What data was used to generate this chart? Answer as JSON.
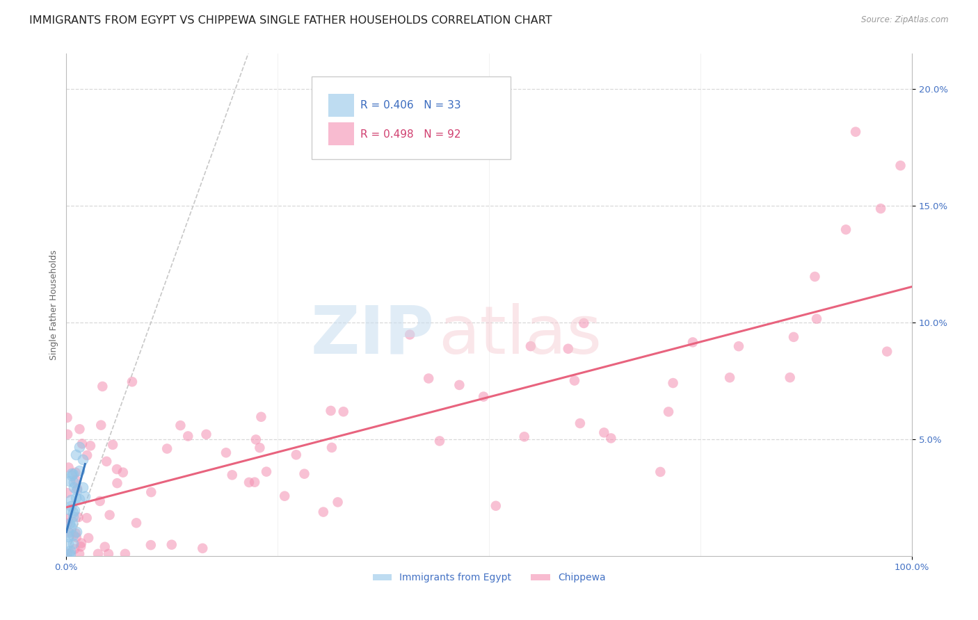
{
  "title": "IMMIGRANTS FROM EGYPT VS CHIPPEWA SINGLE FATHER HOUSEHOLDS CORRELATION CHART",
  "source": "Source: ZipAtlas.com",
  "ylabel": "Single Father Households",
  "xlim": [
    0,
    1.0
  ],
  "ylim": [
    0,
    0.215
  ],
  "ytick_values": [
    0.05,
    0.1,
    0.15,
    0.2
  ],
  "color_blue": "#93c5e8",
  "color_pink": "#f48fb1",
  "color_blue_line": "#3a7abf",
  "color_pink_line": "#e8637e",
  "color_diag": "#c8c8c8",
  "background": "#ffffff",
  "grid_color": "#d8d8d8",
  "title_fontsize": 11.5,
  "axis_label_fontsize": 9,
  "tick_fontsize": 9.5,
  "right_tick_color": "#4472c4",
  "bottom_tick_color": "#4472c4"
}
